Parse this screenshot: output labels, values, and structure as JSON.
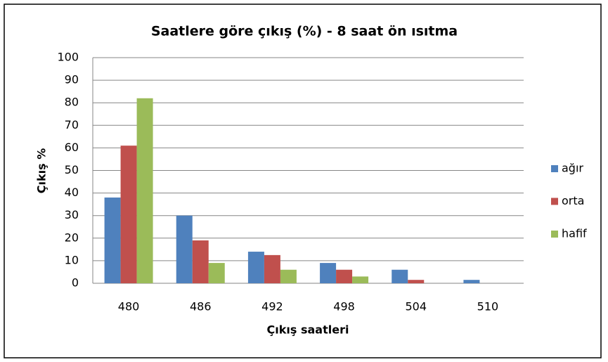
{
  "chart_data": {
    "type": "bar",
    "title": "Saatlere göre çıkış (%) - 8 saat ön ısıtma",
    "x_label": "Çıkış saatleri",
    "y_label": "Çıkış %",
    "categories": [
      "480",
      "486",
      "492",
      "498",
      "504",
      "510"
    ],
    "series": [
      {
        "name": "ağır",
        "color": "#4f81bd",
        "values": [
          38,
          30,
          14,
          9,
          6,
          1.5
        ]
      },
      {
        "name": "orta",
        "color": "#c0504d",
        "values": [
          61,
          19,
          12.5,
          6,
          1.5,
          0
        ]
      },
      {
        "name": "hafif",
        "color": "#9bbb59",
        "values": [
          82,
          9,
          6,
          3,
          0,
          0
        ]
      }
    ],
    "ylim": [
      0,
      100
    ],
    "yticks": [
      0,
      10,
      20,
      30,
      40,
      50,
      60,
      70,
      80,
      90,
      100
    ],
    "grid": true,
    "legend": "right"
  }
}
